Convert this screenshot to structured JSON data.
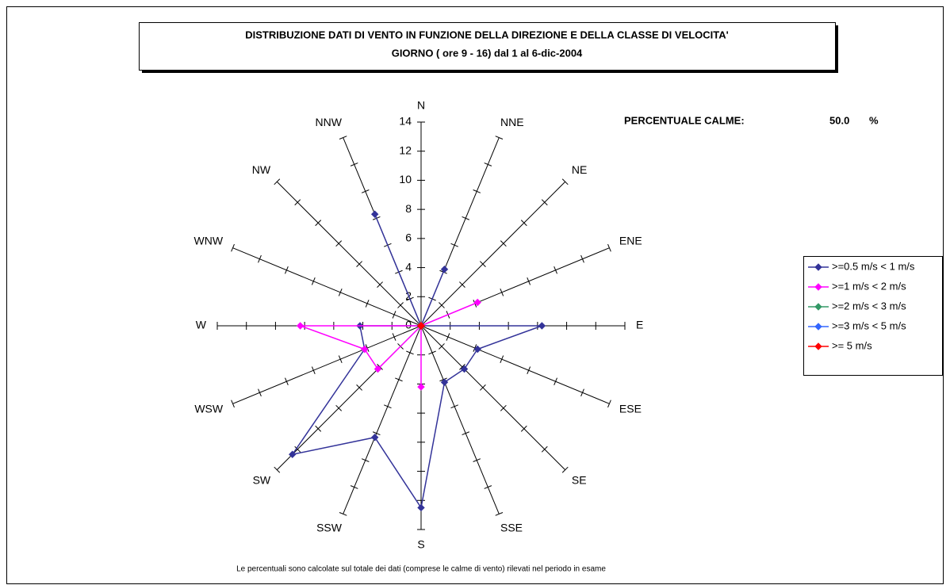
{
  "chart_data": {
    "type": "radar",
    "title": "DISTRIBUZIONE DATI DI VENTO IN FUNZIONE DELLA DIREZIONE E DELLA CLASSE DI VELOCITA'",
    "subtitle": "GIORNO ( ore 9 - 16)  dal 1 al 6-dic-2004",
    "calm_label": "PERCENTUALE CALME:",
    "calm_value": "50.0",
    "calm_unit": "%",
    "footnote": "Le percentuali sono calcolate sul totale dei dati (comprese le calme di vento) rilevati nel periodo in esame",
    "categories": [
      "N",
      "NNE",
      "NE",
      "ENE",
      "E",
      "ESE",
      "SE",
      "SSE",
      "S",
      "SSW",
      "SW",
      "WSW",
      "W",
      "WNW",
      "NW",
      "NNW"
    ],
    "rlim": [
      0,
      14
    ],
    "rticks": [
      0,
      2,
      4,
      6,
      8,
      10,
      12,
      14
    ],
    "series": [
      {
        "name": ">=0.5 m/s < 1 m/s",
        "color": "#333399",
        "values": [
          0,
          4.2,
          0,
          0,
          8.3,
          4.2,
          4.2,
          4.2,
          12.5,
          8.3,
          12.5,
          4.2,
          4.2,
          0,
          0,
          8.3
        ]
      },
      {
        "name": ">=1 m/s < 2 m/s",
        "color": "#ff00ff",
        "values": [
          0,
          0,
          0,
          4.2,
          0,
          0,
          0,
          0,
          4.2,
          0,
          4.2,
          4.2,
          8.3,
          0,
          0,
          0
        ]
      },
      {
        "name": ">=2 m/s < 3 m/s",
        "color": "#339966",
        "values": [
          0,
          0,
          0,
          0,
          0,
          0,
          0,
          0,
          0,
          0,
          0,
          0,
          0,
          0,
          0,
          0
        ]
      },
      {
        "name": ">=3 m/s < 5 m/s",
        "color": "#3366ff",
        "values": [
          0,
          0,
          0,
          0,
          0,
          0,
          0,
          0,
          0,
          0,
          0,
          0,
          0,
          0,
          0,
          0
        ]
      },
      {
        "name": ">= 5 m/s",
        "color": "#ff0000",
        "values": [
          0,
          0,
          0,
          0,
          0,
          0,
          0,
          0,
          0,
          0,
          0,
          0,
          0,
          0,
          0,
          0
        ]
      }
    ],
    "legend": "right"
  }
}
